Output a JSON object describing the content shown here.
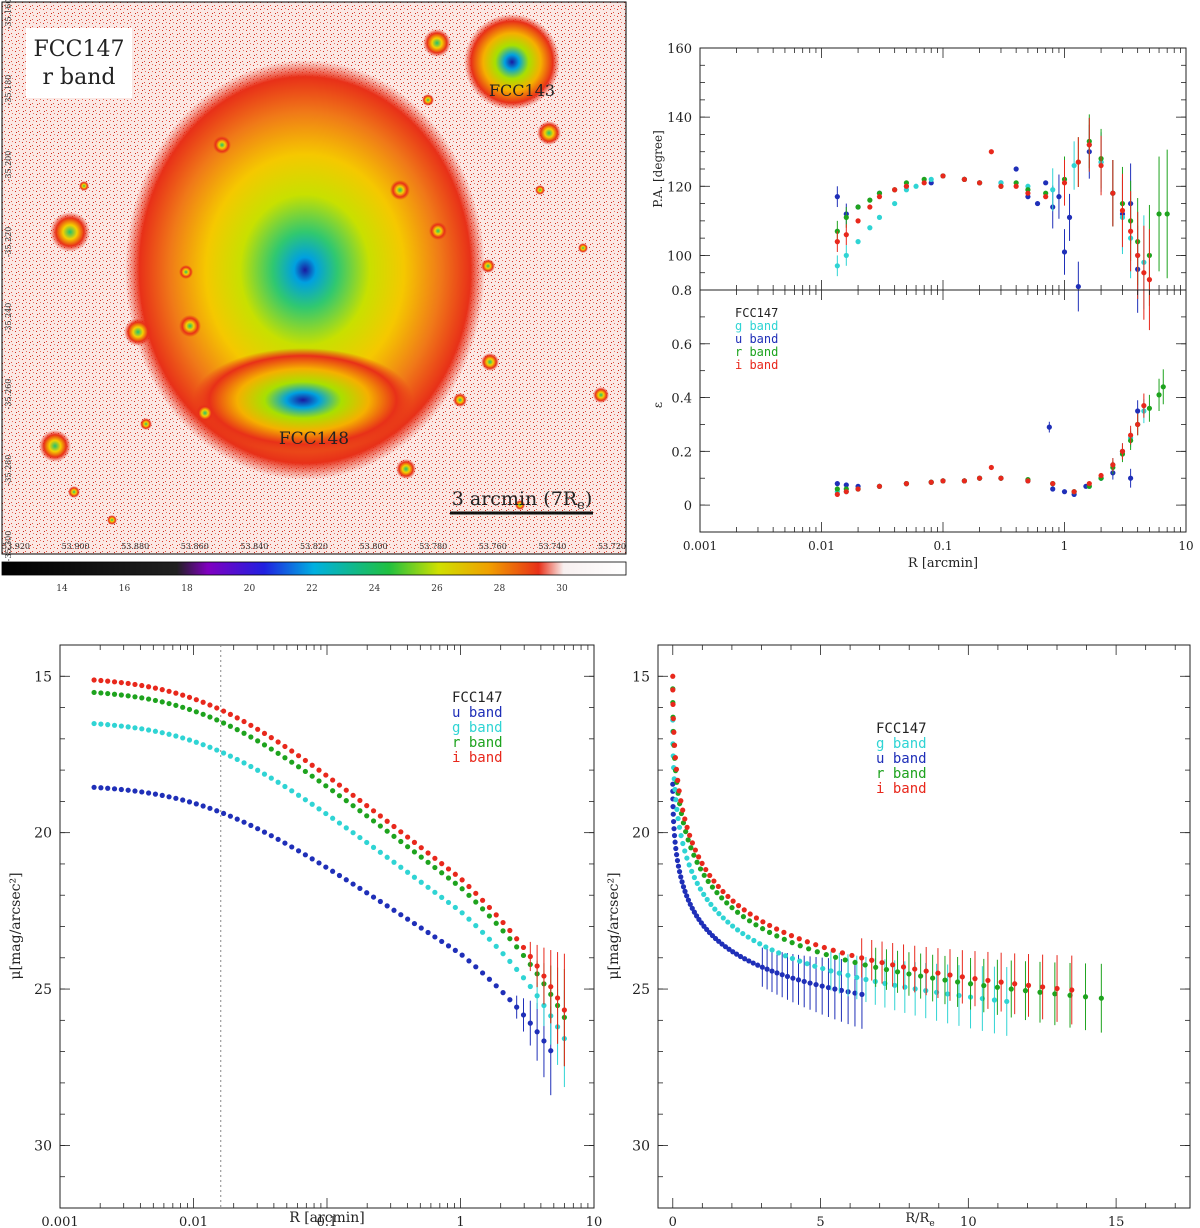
{
  "image_panel": {
    "label_line1": "FCC147",
    "label_line2": "r band",
    "secondary_galaxy": "FCC143",
    "companion_galaxy": "FCC148",
    "scale_bar_label": "3 arcmin (7R",
    "scale_bar_sub": "e",
    "scale_bar_close": ")",
    "ra_ticks": [
      "53.920",
      "53.900",
      "53.880",
      "53.860",
      "53.840",
      "53.820",
      "53.800",
      "53.780",
      "53.760",
      "53.740",
      "53.720"
    ],
    "dec_ticks": [
      "-35.160",
      "-35.180",
      "-35.200",
      "-35.220",
      "-35.240",
      "-35.260",
      "-35.280",
      "-35.300"
    ],
    "colorbar_ticks": [
      "14",
      "16",
      "18",
      "20",
      "22",
      "24",
      "26",
      "28",
      "30"
    ],
    "colors": {
      "hot": "#e8321c",
      "mid": "#f5e800",
      "cool": "#00a0e0",
      "core": "#1a1aa0"
    }
  },
  "chart_data": [
    {
      "id": "pa",
      "type": "scatter",
      "xscale": "log",
      "xlim": [
        0.001,
        10
      ],
      "ylim": [
        90,
        160
      ],
      "ylabel": "P.A. [degree]",
      "yticks": [
        "160",
        "140",
        "120",
        "100"
      ],
      "series": [
        {
          "name": "u",
          "color": "#1f2fb8",
          "x": [
            0.0135,
            0.016,
            0.02,
            0.03,
            0.05,
            0.08,
            0.1,
            0.15,
            0.2,
            0.3,
            0.4,
            0.5,
            0.6,
            0.7,
            0.8,
            0.9,
            1.0,
            1.1,
            1.3,
            1.6,
            2.0,
            2.5,
            3.0,
            3.5,
            4.0
          ],
          "y": [
            117,
            112,
            114,
            118,
            120,
            121,
            123,
            122,
            121,
            121,
            125,
            117,
            115,
            121,
            114,
            117,
            101,
            111,
            91,
            130,
            127,
            118,
            112,
            115,
            96
          ]
        },
        {
          "name": "g",
          "color": "#2fd4d4",
          "x": [
            0.0135,
            0.016,
            0.02,
            0.025,
            0.03,
            0.04,
            0.05,
            0.06,
            0.08,
            0.1,
            0.15,
            0.2,
            0.3,
            0.5,
            0.8,
            1.2,
            1.6,
            2.0,
            2.5,
            3.0,
            3.5,
            4.0,
            4.5
          ],
          "y": [
            97,
            100,
            104,
            108,
            111,
            115,
            119,
            120,
            122,
            123,
            122,
            121,
            121,
            120,
            119,
            126,
            132,
            127,
            118,
            111,
            105,
            100,
            98
          ]
        },
        {
          "name": "r",
          "color": "#1ea31e",
          "x": [
            0.0135,
            0.016,
            0.02,
            0.025,
            0.03,
            0.04,
            0.05,
            0.07,
            0.1,
            0.15,
            0.2,
            0.3,
            0.4,
            0.5,
            0.7,
            1.0,
            1.3,
            1.6,
            2.0,
            2.5,
            3.0,
            3.5,
            4.0,
            5.0,
            6.0,
            7.0
          ],
          "y": [
            107,
            111,
            114,
            116,
            118,
            119,
            121,
            122,
            123,
            122,
            121,
            120,
            121,
            119,
            118,
            122,
            127,
            133,
            128,
            118,
            115,
            110,
            104,
            100,
            112,
            112
          ]
        },
        {
          "name": "i",
          "color": "#e8281c",
          "x": [
            0.0135,
            0.016,
            0.02,
            0.025,
            0.03,
            0.04,
            0.05,
            0.07,
            0.1,
            0.15,
            0.2,
            0.25,
            0.3,
            0.4,
            0.5,
            0.7,
            1.0,
            1.3,
            1.6,
            2.0,
            2.5,
            3.0,
            3.5,
            4.0,
            4.5,
            5.0
          ],
          "y": [
            104,
            106,
            110,
            114,
            117,
            119,
            120,
            121,
            123,
            122,
            121,
            130,
            120,
            120,
            118,
            117,
            121,
            127,
            132,
            126,
            118,
            113,
            107,
            100,
            95,
            93
          ]
        }
      ]
    },
    {
      "id": "ellip",
      "type": "scatter",
      "xscale": "log",
      "xlim": [
        0.001,
        10
      ],
      "ylim": [
        -0.1,
        0.8
      ],
      "xlabel": "R [arcmin]",
      "ylabel": "ε",
      "yticks": [
        "0.8",
        "0.6",
        "0.4",
        "0.2",
        "0"
      ],
      "xticks": [
        "0.001",
        "0.01",
        "0.1",
        "1",
        "10"
      ],
      "legend": {
        "title": "FCC147",
        "entries": [
          "g band",
          "u band",
          "r band",
          "i band"
        ]
      },
      "series": [
        {
          "name": "u",
          "color": "#1f2fb8",
          "x": [
            0.0135,
            0.016,
            0.02,
            0.03,
            0.05,
            0.08,
            0.1,
            0.15,
            0.2,
            0.3,
            0.5,
            0.75,
            0.8,
            1.0,
            1.2,
            1.5,
            2.0,
            2.5,
            3.0,
            3.5,
            4.0
          ],
          "y": [
            0.08,
            0.075,
            0.07,
            0.07,
            0.08,
            0.085,
            0.09,
            0.09,
            0.1,
            0.1,
            0.09,
            0.29,
            0.06,
            0.05,
            0.04,
            0.07,
            0.1,
            0.12,
            0.2,
            0.1,
            0.35
          ]
        },
        {
          "name": "g",
          "color": "#2fd4d4",
          "x": [
            0.0135,
            0.016,
            0.02,
            0.03,
            0.05,
            0.08,
            0.1,
            0.15,
            0.2,
            0.3,
            0.5,
            0.8,
            1.2,
            1.6,
            2.0,
            2.5,
            3.0,
            3.5,
            4.0,
            4.5
          ],
          "y": [
            0.05,
            0.05,
            0.06,
            0.07,
            0.08,
            0.085,
            0.09,
            0.09,
            0.1,
            0.1,
            0.09,
            0.08,
            0.05,
            0.07,
            0.1,
            0.15,
            0.2,
            0.25,
            0.3,
            0.35
          ]
        },
        {
          "name": "r",
          "color": "#1ea31e",
          "x": [
            0.0135,
            0.016,
            0.02,
            0.03,
            0.05,
            0.08,
            0.1,
            0.15,
            0.2,
            0.3,
            0.5,
            0.8,
            1.2,
            1.6,
            2.0,
            2.5,
            3.0,
            3.5,
            4.0,
            5.0,
            6.0,
            6.5
          ],
          "y": [
            0.06,
            0.06,
            0.06,
            0.07,
            0.08,
            0.085,
            0.09,
            0.09,
            0.1,
            0.1,
            0.095,
            0.08,
            0.05,
            0.07,
            0.1,
            0.14,
            0.19,
            0.24,
            0.3,
            0.36,
            0.41,
            0.44
          ]
        },
        {
          "name": "i",
          "color": "#e8281c",
          "x": [
            0.0135,
            0.016,
            0.02,
            0.03,
            0.05,
            0.08,
            0.1,
            0.15,
            0.2,
            0.25,
            0.3,
            0.5,
            0.8,
            1.2,
            1.6,
            2.0,
            2.5,
            3.0,
            3.5,
            4.0,
            4.5
          ],
          "y": [
            0.04,
            0.05,
            0.06,
            0.07,
            0.08,
            0.085,
            0.09,
            0.09,
            0.1,
            0.14,
            0.1,
            0.09,
            0.08,
            0.05,
            0.08,
            0.11,
            0.15,
            0.2,
            0.26,
            0.3,
            0.37
          ]
        }
      ]
    },
    {
      "id": "sb_log",
      "type": "scatter",
      "xscale": "log",
      "xlim": [
        0.001,
        10
      ],
      "ylim": [
        32,
        14
      ],
      "xlabel": "R [arcmin]",
      "ylabel": "μ[mag/arcsec²]",
      "yticks": [
        "15",
        "20",
        "25",
        "30"
      ],
      "xticks": [
        "0.001",
        "0.01",
        "0.1",
        "1",
        "10"
      ],
      "vline": 0.016,
      "legend": {
        "title": "FCC147",
        "entries": [
          "u band",
          "g band",
          "r band",
          "i band"
        ]
      },
      "series": [
        {
          "name": "u",
          "color": "#1f2fb8",
          "center": 18.45,
          "knee": 0.012,
          "slope": 2.35,
          "err_from": 2.5
        },
        {
          "name": "g",
          "color": "#2fd4d4",
          "center": 16.4,
          "knee": 0.012,
          "slope": 2.65,
          "err_from": 3.5
        },
        {
          "name": "r",
          "color": "#1ea31e",
          "center": 15.4,
          "knee": 0.012,
          "slope": 2.75,
          "err_from": 3.5
        },
        {
          "name": "i",
          "color": "#e8281c",
          "center": 15.0,
          "knee": 0.012,
          "slope": 2.8,
          "err_from": 3.0
        }
      ]
    },
    {
      "id": "sb_lin",
      "type": "scatter",
      "xscale": "linear",
      "xlim": [
        -0.5,
        17.5
      ],
      "ylim": [
        32,
        14
      ],
      "xlabel": "R/R",
      "xlabel_sub": "e",
      "ylabel": "μ[mag/arcsec²]",
      "yticks": [
        "15",
        "20",
        "25",
        "30"
      ],
      "xticks": [
        "0",
        "5",
        "10",
        "15"
      ],
      "legend": {
        "title": "FCC147",
        "entries": [
          "g band",
          "u band",
          "r band",
          "i band"
        ]
      },
      "series": [
        {
          "name": "u",
          "color": "#1f2fb8",
          "center": 18.45,
          "xmax": 6.4,
          "slope": 10.0
        },
        {
          "name": "g",
          "color": "#2fd4d4",
          "center": 16.4,
          "xmax": 11.3,
          "slope": 12.3
        },
        {
          "name": "r",
          "color": "#1ea31e",
          "center": 15.4,
          "xmax": 14.5,
          "slope": 13.1
        },
        {
          "name": "i",
          "color": "#e8281c",
          "center": 15.0,
          "xmax": 13.5,
          "slope": 13.4
        }
      ]
    }
  ]
}
